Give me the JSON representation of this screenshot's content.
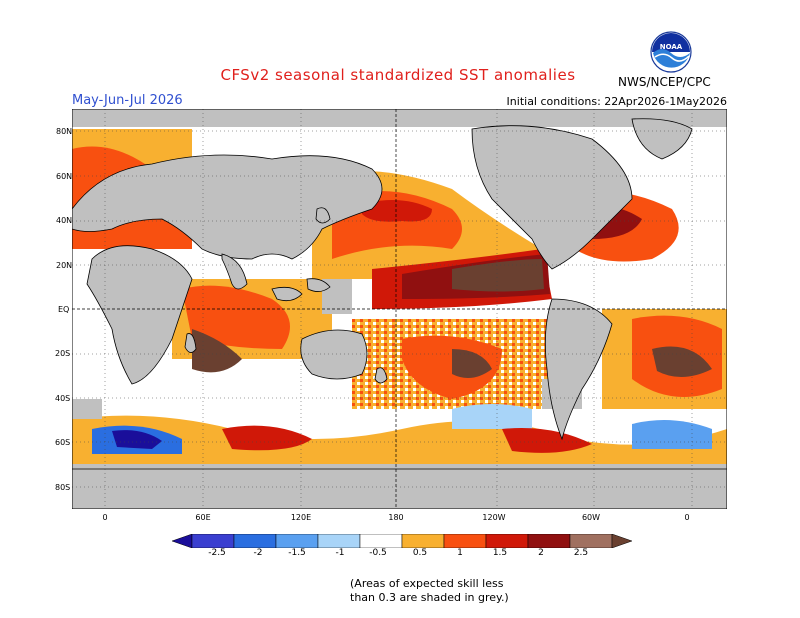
{
  "header": {
    "title": "CFSv2 seasonal standardized SST anomalies",
    "season": "May-Jun-Jul 2026",
    "initial_conditions": "Initial conditions: 22Apr2026-1May2026",
    "agency": "NWS/NCEP/CPC",
    "logo_text": "NOAA"
  },
  "map": {
    "lat_labels": [
      "80N",
      "60N",
      "40N",
      "20N",
      "EQ",
      "20S",
      "40S",
      "60S",
      "80S"
    ],
    "lon_labels": [
      "0",
      "60E",
      "120E",
      "180",
      "120W",
      "60W",
      "0"
    ],
    "colors": {
      "land": "#c0c0c0",
      "ocean_neutral": "#ffffff",
      "grey_low_skill": "#c0c0c0"
    }
  },
  "legend": {
    "labels": [
      "-2.5",
      "-2",
      "-1.5",
      "-1",
      "-0.5",
      "0.5",
      "1",
      "1.5",
      "2",
      "2.5"
    ],
    "colors": [
      "#1a0e9a",
      "#3a3fd0",
      "#2a6ee0",
      "#5aa0f0",
      "#a8d4f8",
      "#ffffff",
      "#f8b030",
      "#f85010",
      "#d01808",
      "#901010",
      "#a07060",
      "#6a4030"
    ]
  },
  "footnote": {
    "line1": "(Areas of expected skill less",
    "line2": "than 0.3 are shaded in grey.)"
  }
}
